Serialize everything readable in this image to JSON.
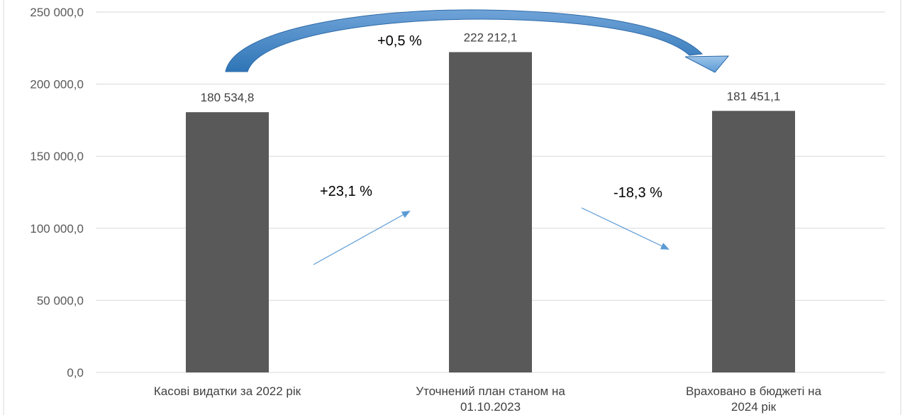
{
  "chart_data": {
    "type": "bar",
    "categories": [
      "Касові видатки за 2022 рік",
      "Уточнений план станом на 01.10.2023",
      "Враховано в бюджеті на 2024 рік"
    ],
    "values": [
      180534.8,
      222212.1,
      181451.1
    ],
    "data_labels": [
      "180 534,8",
      "222 212,1",
      "181 451,1"
    ],
    "yticks": [
      {
        "value": 0,
        "label": "0,0"
      },
      {
        "value": 50000,
        "label": "50 000,0"
      },
      {
        "value": 100000,
        "label": "100 000,0"
      },
      {
        "value": 150000,
        "label": "150 000,0"
      },
      {
        "value": 200000,
        "label": "200 000,0"
      },
      {
        "value": 250000,
        "label": "250 000,0"
      }
    ],
    "ylim": [
      0,
      250000
    ],
    "grid": true,
    "bar_color": "#595959",
    "grid_color": "#d9d9d9",
    "annotations": {
      "change_1_to_2": "+23,1 %",
      "change_2_to_3": "-18,3 %",
      "change_1_to_3": "+0,5 %"
    },
    "arrow_color_small": "#5b9bd5",
    "arrow_color_big": "#2e75b6"
  }
}
